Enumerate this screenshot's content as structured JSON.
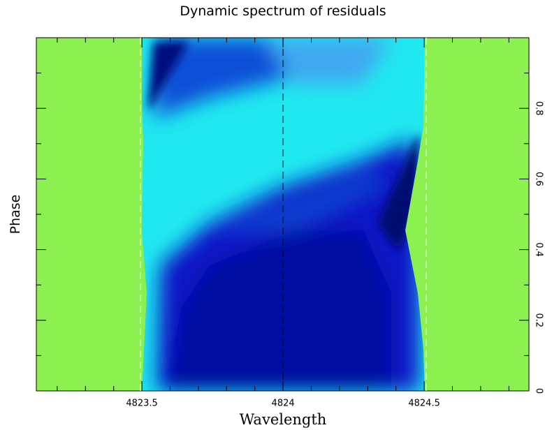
{
  "chart_data": {
    "type": "heatmap",
    "title": "Dynamic spectrum of residuals",
    "x_label": "Wavelength",
    "y_label": "Phase",
    "xlim": [
      4823.126,
      4824.871
    ],
    "ylim": [
      0,
      1
    ],
    "xticks": [
      4823.5,
      4824,
      4824.5
    ],
    "xminorticks": [
      4823.2,
      4823.3,
      4823.4,
      4823.6,
      4823.7,
      4823.8,
      4823.9,
      4824.1,
      4824.2,
      4824.3,
      4824.4,
      4824.6,
      4824.7,
      4824.8
    ],
    "yticks": [
      0,
      0.2,
      0.4,
      0.6,
      0.8
    ],
    "yminorticks": [
      0.1,
      0.3,
      0.5,
      0.7,
      0.9
    ],
    "vlines": [
      {
        "x": 4823.495,
        "color": "#ffffff"
      },
      {
        "x": 4824,
        "color": "#000000"
      },
      {
        "x": 4824.507,
        "color": "#ffffff"
      }
    ]
  }
}
